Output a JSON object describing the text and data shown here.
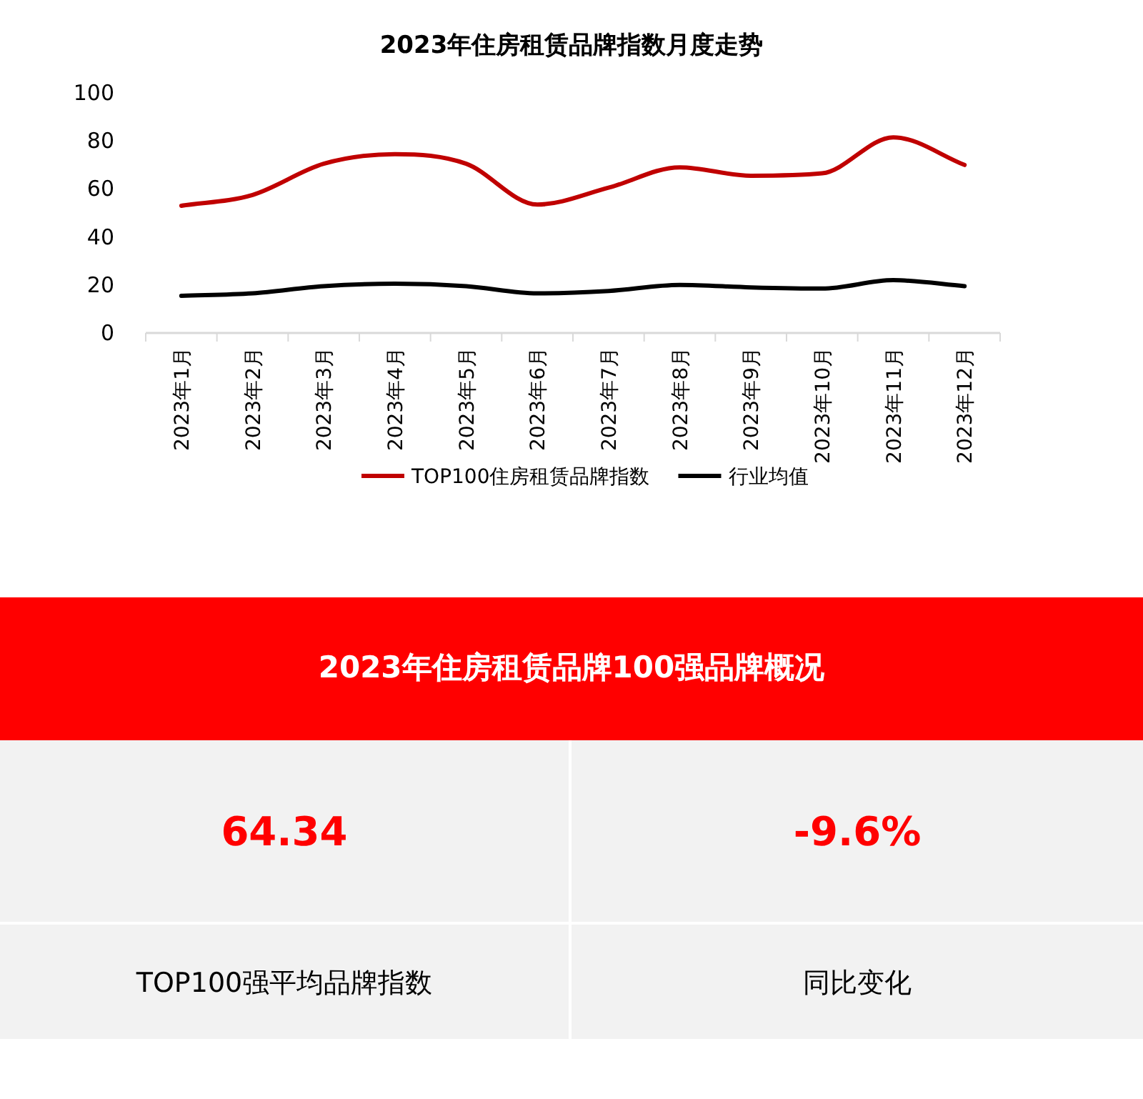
{
  "chart_data": [
    {
      "type": "line",
      "title": "2023年住房租赁品牌指数月度走势",
      "categories": [
        "2023年1月",
        "2023年2月",
        "2023年3月",
        "2023年4月",
        "2023年5月",
        "2023年6月",
        "2023年7月",
        "2023年8月",
        "2023年9月",
        "2023年10月",
        "2023年11月",
        "2023年12月"
      ],
      "series": [
        {
          "name": "TOP100住房租赁品牌指数",
          "color": "#c00000",
          "values": [
            53,
            57.5,
            70.5,
            74.5,
            70.5,
            53.5,
            60.5,
            69,
            65.5,
            66.5,
            81.5,
            70
          ]
        },
        {
          "name": "行业均值",
          "color": "#000000",
          "values": [
            15.5,
            16.5,
            19.5,
            20.5,
            19.5,
            16.5,
            17.5,
            20,
            19,
            18.5,
            22,
            19.5
          ]
        }
      ],
      "ylim": [
        0,
        100
      ],
      "yticks": [
        0,
        20,
        40,
        60,
        80,
        100
      ],
      "grid": false,
      "legend": "bottom",
      "marker": "none",
      "line_style": "solid"
    },
    {
      "type": "other",
      "title": "2023年住房租赁品牌100强品牌概况",
      "annotations": [
        "64.34",
        "-9.6%",
        "TOP100强平均品牌指数",
        "同比变化"
      ]
    }
  ]
}
